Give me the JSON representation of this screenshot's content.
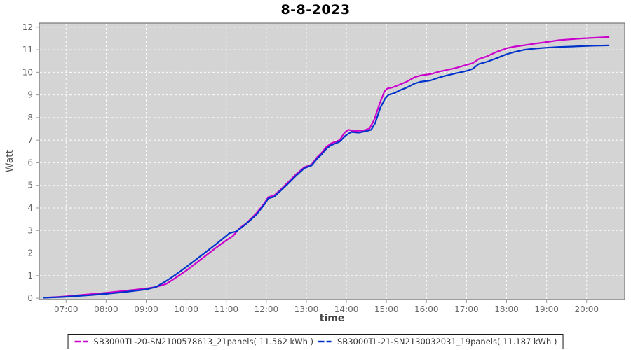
{
  "title": "8-8-2023",
  "chart_data": {
    "type": "line",
    "title": "8-8-2023",
    "xlabel": "time",
    "ylabel": "Watt",
    "plot_background": "#d4d4d4",
    "grid_color": "#ffffff",
    "grid_style": "dashed",
    "border_color": "#777777",
    "tick_color": "#999999",
    "tick_label_color": "#666666",
    "legend_position": "bottom",
    "x_axis": {
      "range_hours": [
        6.33,
        20.95
      ],
      "ticks": [
        {
          "hour": 7,
          "label": "07:00"
        },
        {
          "hour": 8,
          "label": "08:00"
        },
        {
          "hour": 9,
          "label": "09:00"
        },
        {
          "hour": 10,
          "label": "10:00"
        },
        {
          "hour": 11,
          "label": "11:00"
        },
        {
          "hour": 12,
          "label": "12:00"
        },
        {
          "hour": 13,
          "label": "13:00"
        },
        {
          "hour": 14,
          "label": "14:00"
        },
        {
          "hour": 15,
          "label": "15:00"
        },
        {
          "hour": 16,
          "label": "16:00"
        },
        {
          "hour": 17,
          "label": "17:00"
        },
        {
          "hour": 18,
          "label": "18:00"
        },
        {
          "hour": 19,
          "label": "19:00"
        },
        {
          "hour": 20,
          "label": "20:00"
        }
      ]
    },
    "y_axis": {
      "min": 0,
      "max": 12,
      "display_range": [
        -0.06,
        12.18
      ],
      "ticks": [
        0,
        1,
        2,
        3,
        4,
        5,
        6,
        7,
        8,
        9,
        10,
        11,
        12
      ]
    },
    "series": [
      {
        "name": "SB3000TL-20-SN2100578613_21panels( 11.562 kWh )",
        "color": "#cc00cc",
        "energy_kwh": 11.562,
        "points_time_value": [
          [
            6.45,
            0.02
          ],
          [
            6.75,
            0.05
          ],
          [
            7,
            0.08
          ],
          [
            7.5,
            0.16
          ],
          [
            8,
            0.24
          ],
          [
            8.5,
            0.33
          ],
          [
            9,
            0.43
          ],
          [
            9.25,
            0.5
          ],
          [
            9.5,
            0.63
          ],
          [
            9.75,
            0.92
          ],
          [
            10,
            1.22
          ],
          [
            10.25,
            1.56
          ],
          [
            10.5,
            1.9
          ],
          [
            10.75,
            2.24
          ],
          [
            11,
            2.56
          ],
          [
            11.17,
            2.76
          ],
          [
            11.33,
            3.1
          ],
          [
            11.5,
            3.32
          ],
          [
            11.75,
            3.76
          ],
          [
            11.95,
            4.2
          ],
          [
            12.05,
            4.48
          ],
          [
            12.2,
            4.56
          ],
          [
            12.35,
            4.8
          ],
          [
            12.5,
            5.06
          ],
          [
            12.75,
            5.5
          ],
          [
            12.95,
            5.8
          ],
          [
            13.13,
            5.92
          ],
          [
            13.27,
            6.25
          ],
          [
            13.37,
            6.42
          ],
          [
            13.5,
            6.7
          ],
          [
            13.62,
            6.86
          ],
          [
            13.83,
            7.0
          ],
          [
            13.95,
            7.32
          ],
          [
            14.05,
            7.46
          ],
          [
            14.2,
            7.4
          ],
          [
            14.45,
            7.44
          ],
          [
            14.58,
            7.52
          ],
          [
            14.7,
            7.92
          ],
          [
            14.83,
            8.62
          ],
          [
            14.95,
            9.15
          ],
          [
            15.02,
            9.28
          ],
          [
            15.15,
            9.33
          ],
          [
            15.28,
            9.42
          ],
          [
            15.5,
            9.58
          ],
          [
            15.7,
            9.78
          ],
          [
            15.85,
            9.86
          ],
          [
            16.1,
            9.92
          ],
          [
            16.3,
            10.02
          ],
          [
            16.5,
            10.1
          ],
          [
            16.75,
            10.2
          ],
          [
            17,
            10.33
          ],
          [
            17.15,
            10.4
          ],
          [
            17.3,
            10.58
          ],
          [
            17.5,
            10.7
          ],
          [
            17.75,
            10.9
          ],
          [
            18,
            11.06
          ],
          [
            18.2,
            11.14
          ],
          [
            18.45,
            11.2
          ],
          [
            18.7,
            11.27
          ],
          [
            19,
            11.34
          ],
          [
            19.3,
            11.42
          ],
          [
            19.6,
            11.46
          ],
          [
            19.9,
            11.5
          ],
          [
            20.2,
            11.53
          ],
          [
            20.55,
            11.56
          ]
        ]
      },
      {
        "name": "SB3000TL-21-SN2130032031_19panels( 11.187 kWh )",
        "color": "#0033cc",
        "energy_kwh": 11.187,
        "points_time_value": [
          [
            6.45,
            0.02
          ],
          [
            6.75,
            0.04
          ],
          [
            7,
            0.06
          ],
          [
            7.5,
            0.12
          ],
          [
            8,
            0.19
          ],
          [
            8.5,
            0.28
          ],
          [
            9,
            0.39
          ],
          [
            9.25,
            0.5
          ],
          [
            9.5,
            0.76
          ],
          [
            9.75,
            1.06
          ],
          [
            10,
            1.38
          ],
          [
            10.25,
            1.72
          ],
          [
            10.5,
            2.06
          ],
          [
            10.75,
            2.4
          ],
          [
            11,
            2.76
          ],
          [
            11.08,
            2.88
          ],
          [
            11.25,
            2.96
          ],
          [
            11.37,
            3.12
          ],
          [
            11.5,
            3.3
          ],
          [
            11.75,
            3.7
          ],
          [
            11.95,
            4.15
          ],
          [
            12.05,
            4.42
          ],
          [
            12.2,
            4.5
          ],
          [
            12.35,
            4.75
          ],
          [
            12.5,
            5.0
          ],
          [
            12.75,
            5.44
          ],
          [
            12.95,
            5.76
          ],
          [
            13.13,
            5.88
          ],
          [
            13.27,
            6.18
          ],
          [
            13.37,
            6.35
          ],
          [
            13.5,
            6.62
          ],
          [
            13.62,
            6.78
          ],
          [
            13.83,
            6.93
          ],
          [
            13.98,
            7.2
          ],
          [
            14.12,
            7.36
          ],
          [
            14.3,
            7.33
          ],
          [
            14.5,
            7.4
          ],
          [
            14.62,
            7.46
          ],
          [
            14.72,
            7.76
          ],
          [
            14.85,
            8.45
          ],
          [
            14.97,
            8.85
          ],
          [
            15.05,
            9.0
          ],
          [
            15.2,
            9.08
          ],
          [
            15.33,
            9.2
          ],
          [
            15.5,
            9.32
          ],
          [
            15.7,
            9.5
          ],
          [
            15.85,
            9.58
          ],
          [
            16.1,
            9.64
          ],
          [
            16.3,
            9.76
          ],
          [
            16.5,
            9.86
          ],
          [
            16.75,
            9.96
          ],
          [
            17,
            10.06
          ],
          [
            17.15,
            10.15
          ],
          [
            17.3,
            10.36
          ],
          [
            17.5,
            10.46
          ],
          [
            17.75,
            10.62
          ],
          [
            18,
            10.8
          ],
          [
            18.2,
            10.9
          ],
          [
            18.45,
            11.0
          ],
          [
            18.7,
            11.05
          ],
          [
            19,
            11.09
          ],
          [
            19.3,
            11.12
          ],
          [
            19.6,
            11.14
          ],
          [
            19.9,
            11.16
          ],
          [
            20.2,
            11.18
          ],
          [
            20.55,
            11.19
          ]
        ]
      }
    ]
  }
}
